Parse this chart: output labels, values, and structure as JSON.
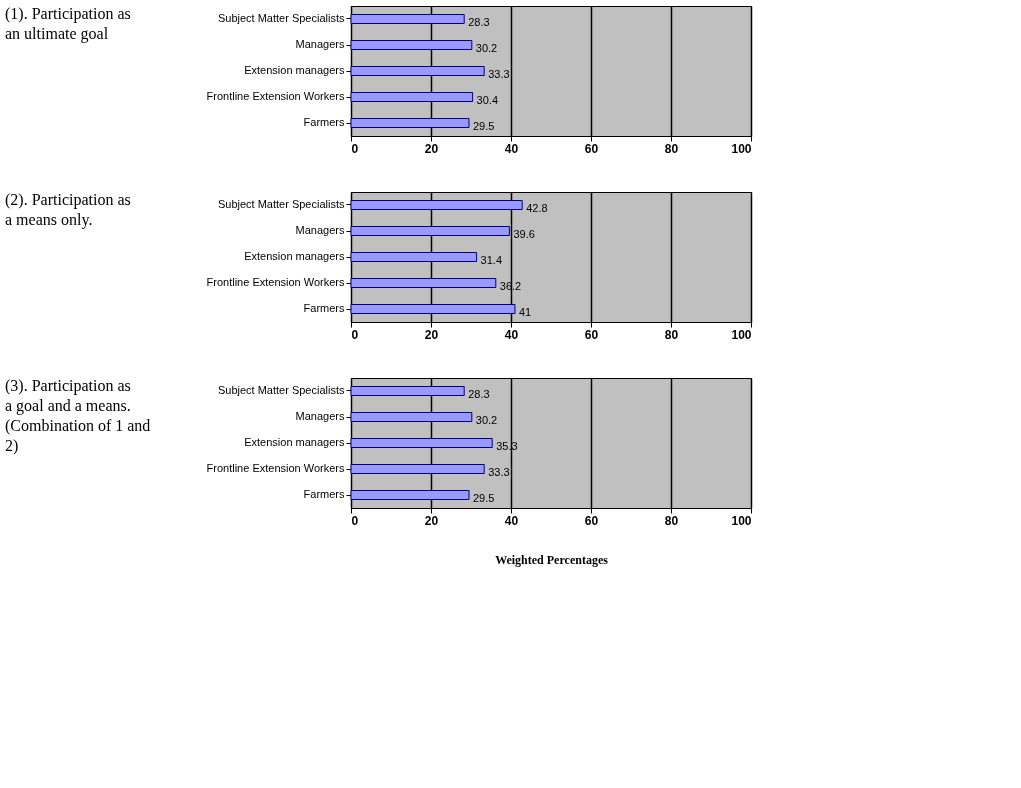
{
  "chart_data": [
    {
      "type": "bar",
      "orientation": "horizontal",
      "title": "(1). Participation as an ultimate goal",
      "categories": [
        "Subject Matter Specialists",
        "Managers",
        "Extension managers",
        "Frontline Extension Workers",
        "Farmers"
      ],
      "values": [
        28.3,
        30.2,
        33.3,
        30.4,
        29.5
      ],
      "color": "#9999ff",
      "xlim": [
        0,
        100
      ],
      "xticks": [
        0,
        20,
        40,
        60,
        80,
        100
      ],
      "grid": "x",
      "data_labels": true
    },
    {
      "type": "bar",
      "orientation": "horizontal",
      "title": "(2). Participation as a means only.",
      "categories": [
        "Subject Matter Specialists",
        "Managers",
        "Extension managers",
        "Frontline Extension Workers",
        "Farmers"
      ],
      "values": [
        42.8,
        39.6,
        31.4,
        36.2,
        41
      ],
      "color": "#9999ff",
      "xlim": [
        0,
        100
      ],
      "xticks": [
        0,
        20,
        40,
        60,
        80,
        100
      ],
      "grid": "x",
      "data_labels": true
    },
    {
      "type": "bar",
      "orientation": "horizontal",
      "title": "(3). Participation as a goal and a means. (Combination of 1 and 2)",
      "categories": [
        "Subject Matter Specialists",
        "Managers",
        "Extension managers",
        "Frontline Extension Workers",
        "Farmers"
      ],
      "values": [
        28.3,
        30.2,
        35.3,
        33.3,
        29.5
      ],
      "color": "#9999ff",
      "xlim": [
        0,
        100
      ],
      "xticks": [
        0,
        20,
        40,
        60,
        80,
        100
      ],
      "grid": "x",
      "data_labels": true,
      "xlabel": "Weighted Percentages"
    }
  ]
}
